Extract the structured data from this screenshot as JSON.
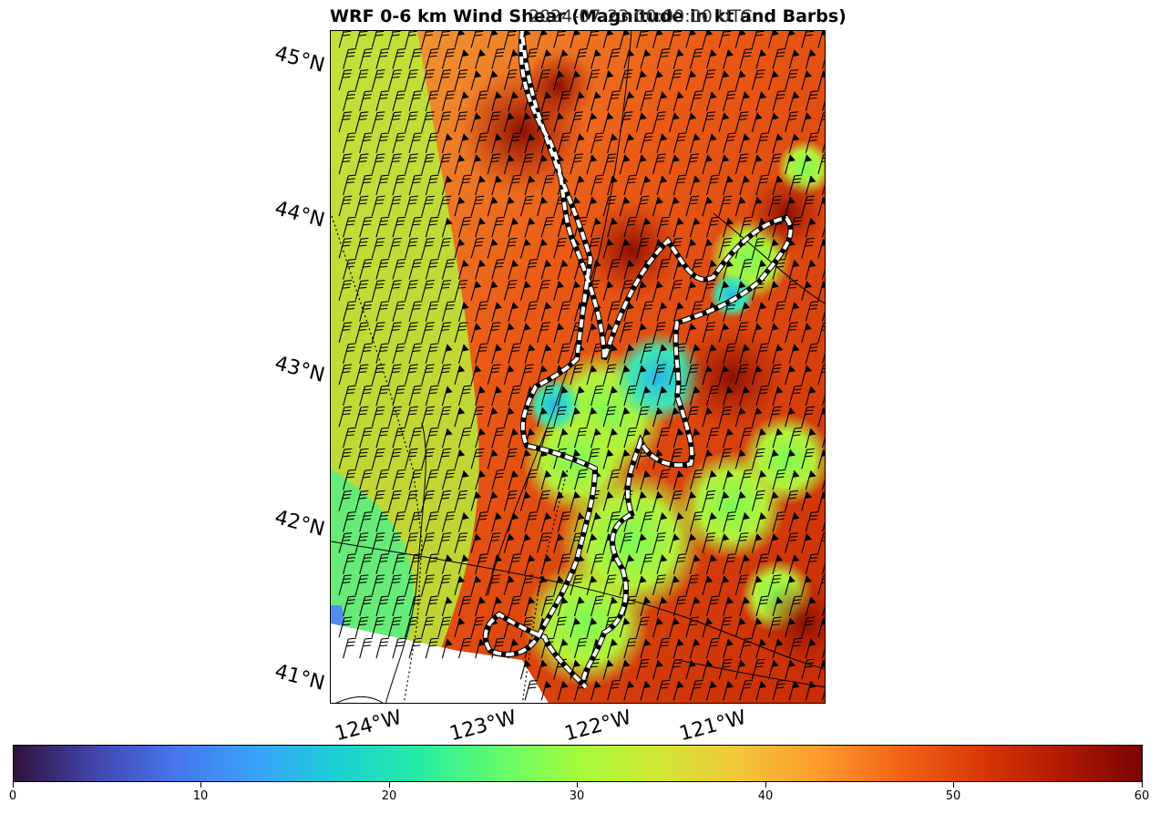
{
  "title_left": "WRF 0-6 km Wind Shear (Magnitude in kt and Barbs)",
  "title_right": "2024-07-23 00:00:00 UTC",
  "map": {
    "lat_labels": [
      "45°N",
      "44°N",
      "43°N",
      "42°N",
      "41°N"
    ],
    "lon_labels": [
      "124°W",
      "123°W",
      "122°W",
      "121°W"
    ],
    "colormap": "turbo",
    "value_range_kt": [
      0,
      60
    ],
    "fill_color_low": "#30123b",
    "fill_color_high": "#7a0403",
    "outline_color": "#ffffff",
    "barb_color": "#000000",
    "wind_direction": "from southwest"
  },
  "colorbar": {
    "min": 0,
    "max": 60,
    "ticks": [
      "0",
      "10",
      "20",
      "30",
      "40",
      "50",
      "60"
    ]
  }
}
